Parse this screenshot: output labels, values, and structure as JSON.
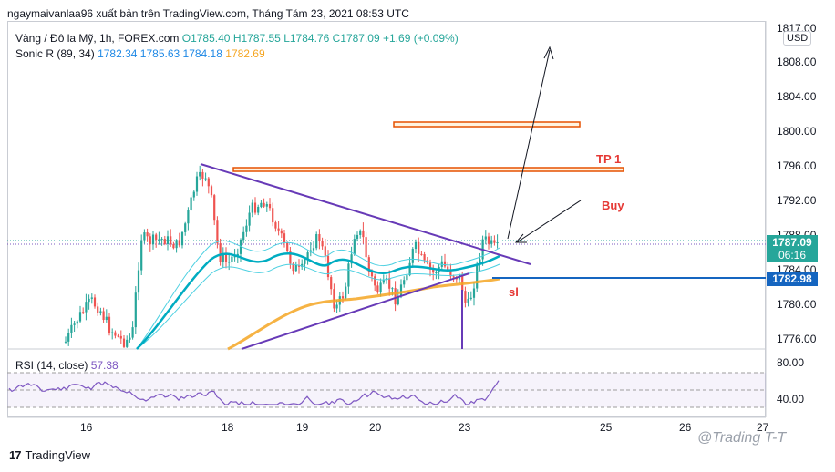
{
  "header": {
    "title": "ngaymaivanlaa96 xuất bản trên TradingView.com, Tháng Tám 23, 2021 08:53 UTC"
  },
  "legend": {
    "symbol": "Vàng / Đô la Mỹ, 1h, FOREX.com",
    "ohlc": [
      "O1785.40",
      "H1787.55",
      "L1784.76",
      "C1787.09",
      "+1.69 (+0.09%)"
    ],
    "indicator_name": "Sonic R (89, 34)",
    "indicator_values": [
      "1782.34",
      "1785.63",
      "1784.18",
      "1782.69"
    ],
    "rsi_name": "RSI (14, close)",
    "rsi_value": "57.38"
  },
  "price_axis": {
    "currency": "USD",
    "ticks": [
      "1817.00",
      "1808.00",
      "1804.00",
      "1800.00",
      "1796.00",
      "1792.00",
      "1788.00",
      "1784.00",
      "1780.00",
      "1776.00"
    ],
    "last_price": "1787.09",
    "countdown": "06:16",
    "line_price": "1782.98"
  },
  "rsi_axis": {
    "ticks": [
      "80.00",
      "40.00"
    ]
  },
  "time_axis": {
    "ticks": [
      "16",
      "18",
      "19",
      "20",
      "23",
      "25",
      "26",
      "27"
    ]
  },
  "annotations": {
    "tp1": "TP 1",
    "buy": "Buy",
    "sl": "sl"
  },
  "footer": {
    "brand": "TradingView",
    "watermark": "@Trading T-T"
  },
  "colors": {
    "bull": "#26a69a",
    "bear": "#ef5350",
    "trendline": "#673ab7",
    "resistance": "#e65100",
    "support": "#1565c0",
    "ema_band": "#00bcd4",
    "sma_orange": "#f5a623",
    "rsi": "#7e57c2"
  }
}
